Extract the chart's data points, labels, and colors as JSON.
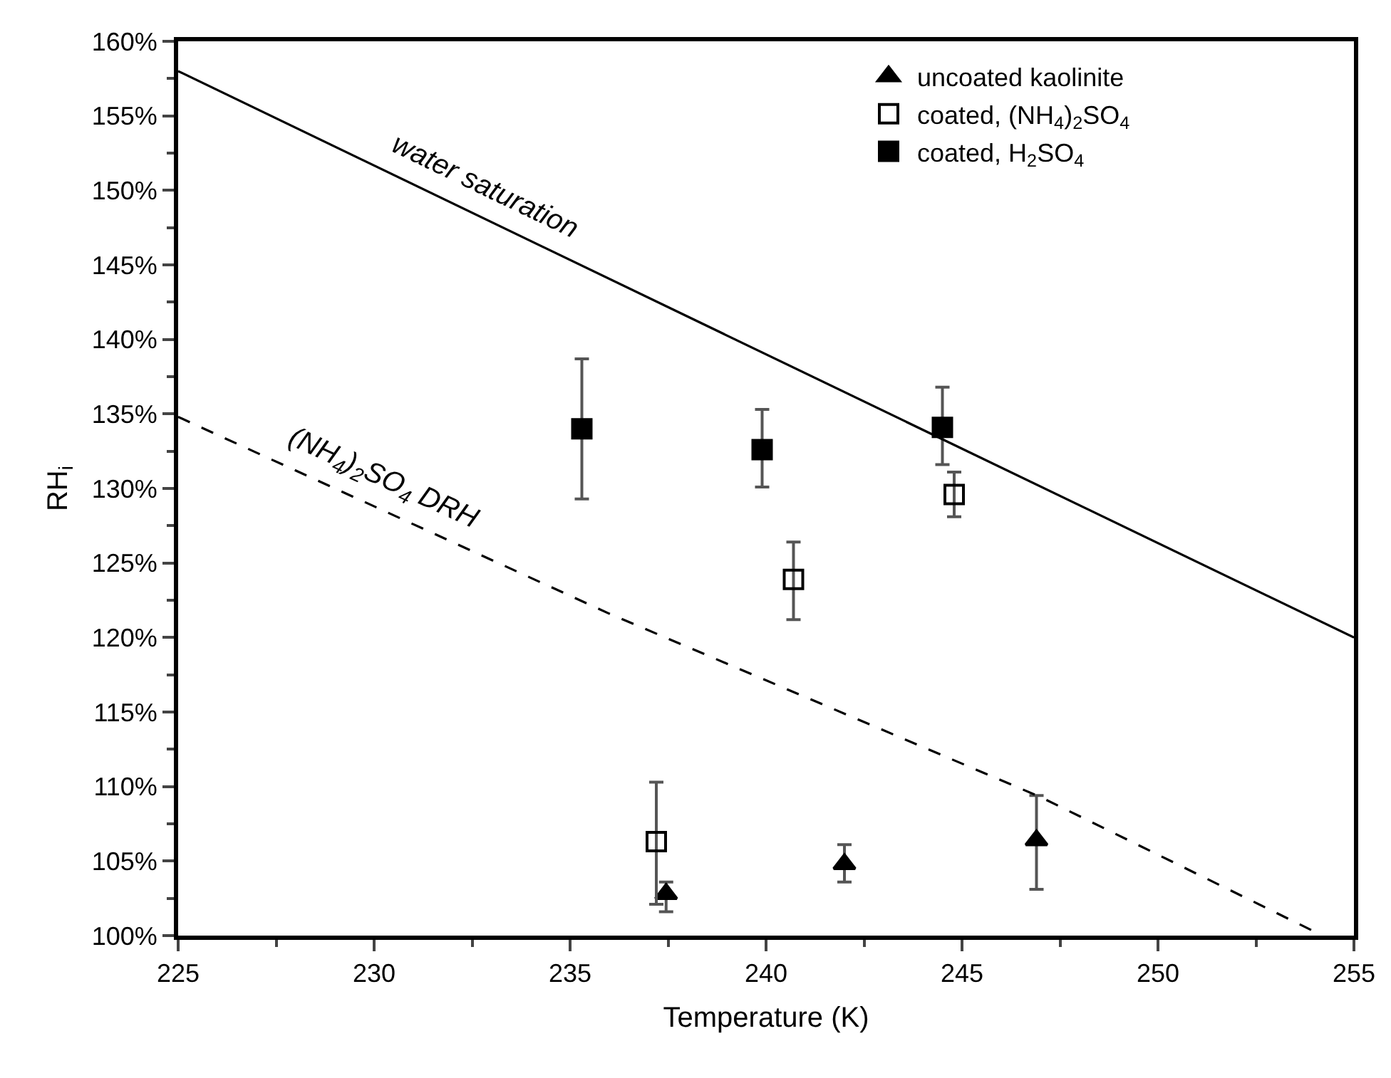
{
  "chart_data": {
    "type": "scatter",
    "xlabel": "Temperature (K)",
    "ylabel": "RH$_{i}$",
    "xlim": [
      225,
      255
    ],
    "xticks": [
      225,
      230,
      235,
      240,
      245,
      250,
      255
    ],
    "ylim": [
      100,
      160
    ],
    "yticks": [
      {
        "value": 100,
        "label": "100%"
      },
      {
        "value": 105,
        "label": "105%"
      },
      {
        "value": 110,
        "label": "110%"
      },
      {
        "value": 115,
        "label": "115%"
      },
      {
        "value": 120,
        "label": "120%"
      },
      {
        "value": 125,
        "label": "125%"
      },
      {
        "value": 130,
        "label": "130%"
      },
      {
        "value": 135,
        "label": "135%"
      },
      {
        "value": 140,
        "label": "140%"
      },
      {
        "value": 145,
        "label": "145%"
      },
      {
        "value": 150,
        "label": "150%"
      },
      {
        "value": 155,
        "label": "155%"
      },
      {
        "value": 160,
        "label": "160%"
      }
    ],
    "grid": false,
    "legend": "top right",
    "series": [
      {
        "name": "uncoated kaolinite",
        "marker": "triangle",
        "color": "#000000",
        "x": [
          237.45,
          242.0,
          246.9
        ],
        "values": [
          102.8,
          104.8,
          106.4
        ],
        "errors": [
          [
            101.6,
            103.6
          ],
          [
            103.6,
            106.1
          ],
          [
            103.1,
            109.4
          ]
        ]
      },
      {
        "name": "coated, (NH$_{4}$)$_{2}$SO$_{4}$",
        "marker": "square-open",
        "color": "#000000",
        "x": [
          237.2,
          240.7,
          244.8
        ],
        "values": [
          106.3,
          123.9,
          129.6
        ],
        "errors": [
          [
            102.1,
            110.3
          ],
          [
            121.2,
            126.4
          ],
          [
            128.1,
            131.1
          ]
        ]
      },
      {
        "name": "coated, H$_{2}$SO$_{4}$",
        "marker": "square",
        "color": "#000000",
        "x": [
          235.3,
          239.9,
          244.5
        ],
        "values": [
          134.0,
          132.6,
          134.1
        ],
        "errors": [
          [
            129.3,
            138.7
          ],
          [
            130.1,
            135.3
          ],
          [
            131.6,
            136.8
          ]
        ]
      },
      {
        "name": "water saturation",
        "type": "line",
        "line_style": "solid",
        "color": "#000000",
        "x": [
          225,
          255
        ],
        "values": [
          158.0,
          120.0
        ]
      },
      {
        "name": "(NH$_{4}$)$_{2}$SO$_{4}$ DRH",
        "type": "line",
        "line_style": "dashed",
        "color": "#000000",
        "x": [
          225,
          236,
          247,
          254.2
        ],
        "values": [
          134.8,
          121.6,
          109.3,
          100
        ]
      }
    ]
  }
}
